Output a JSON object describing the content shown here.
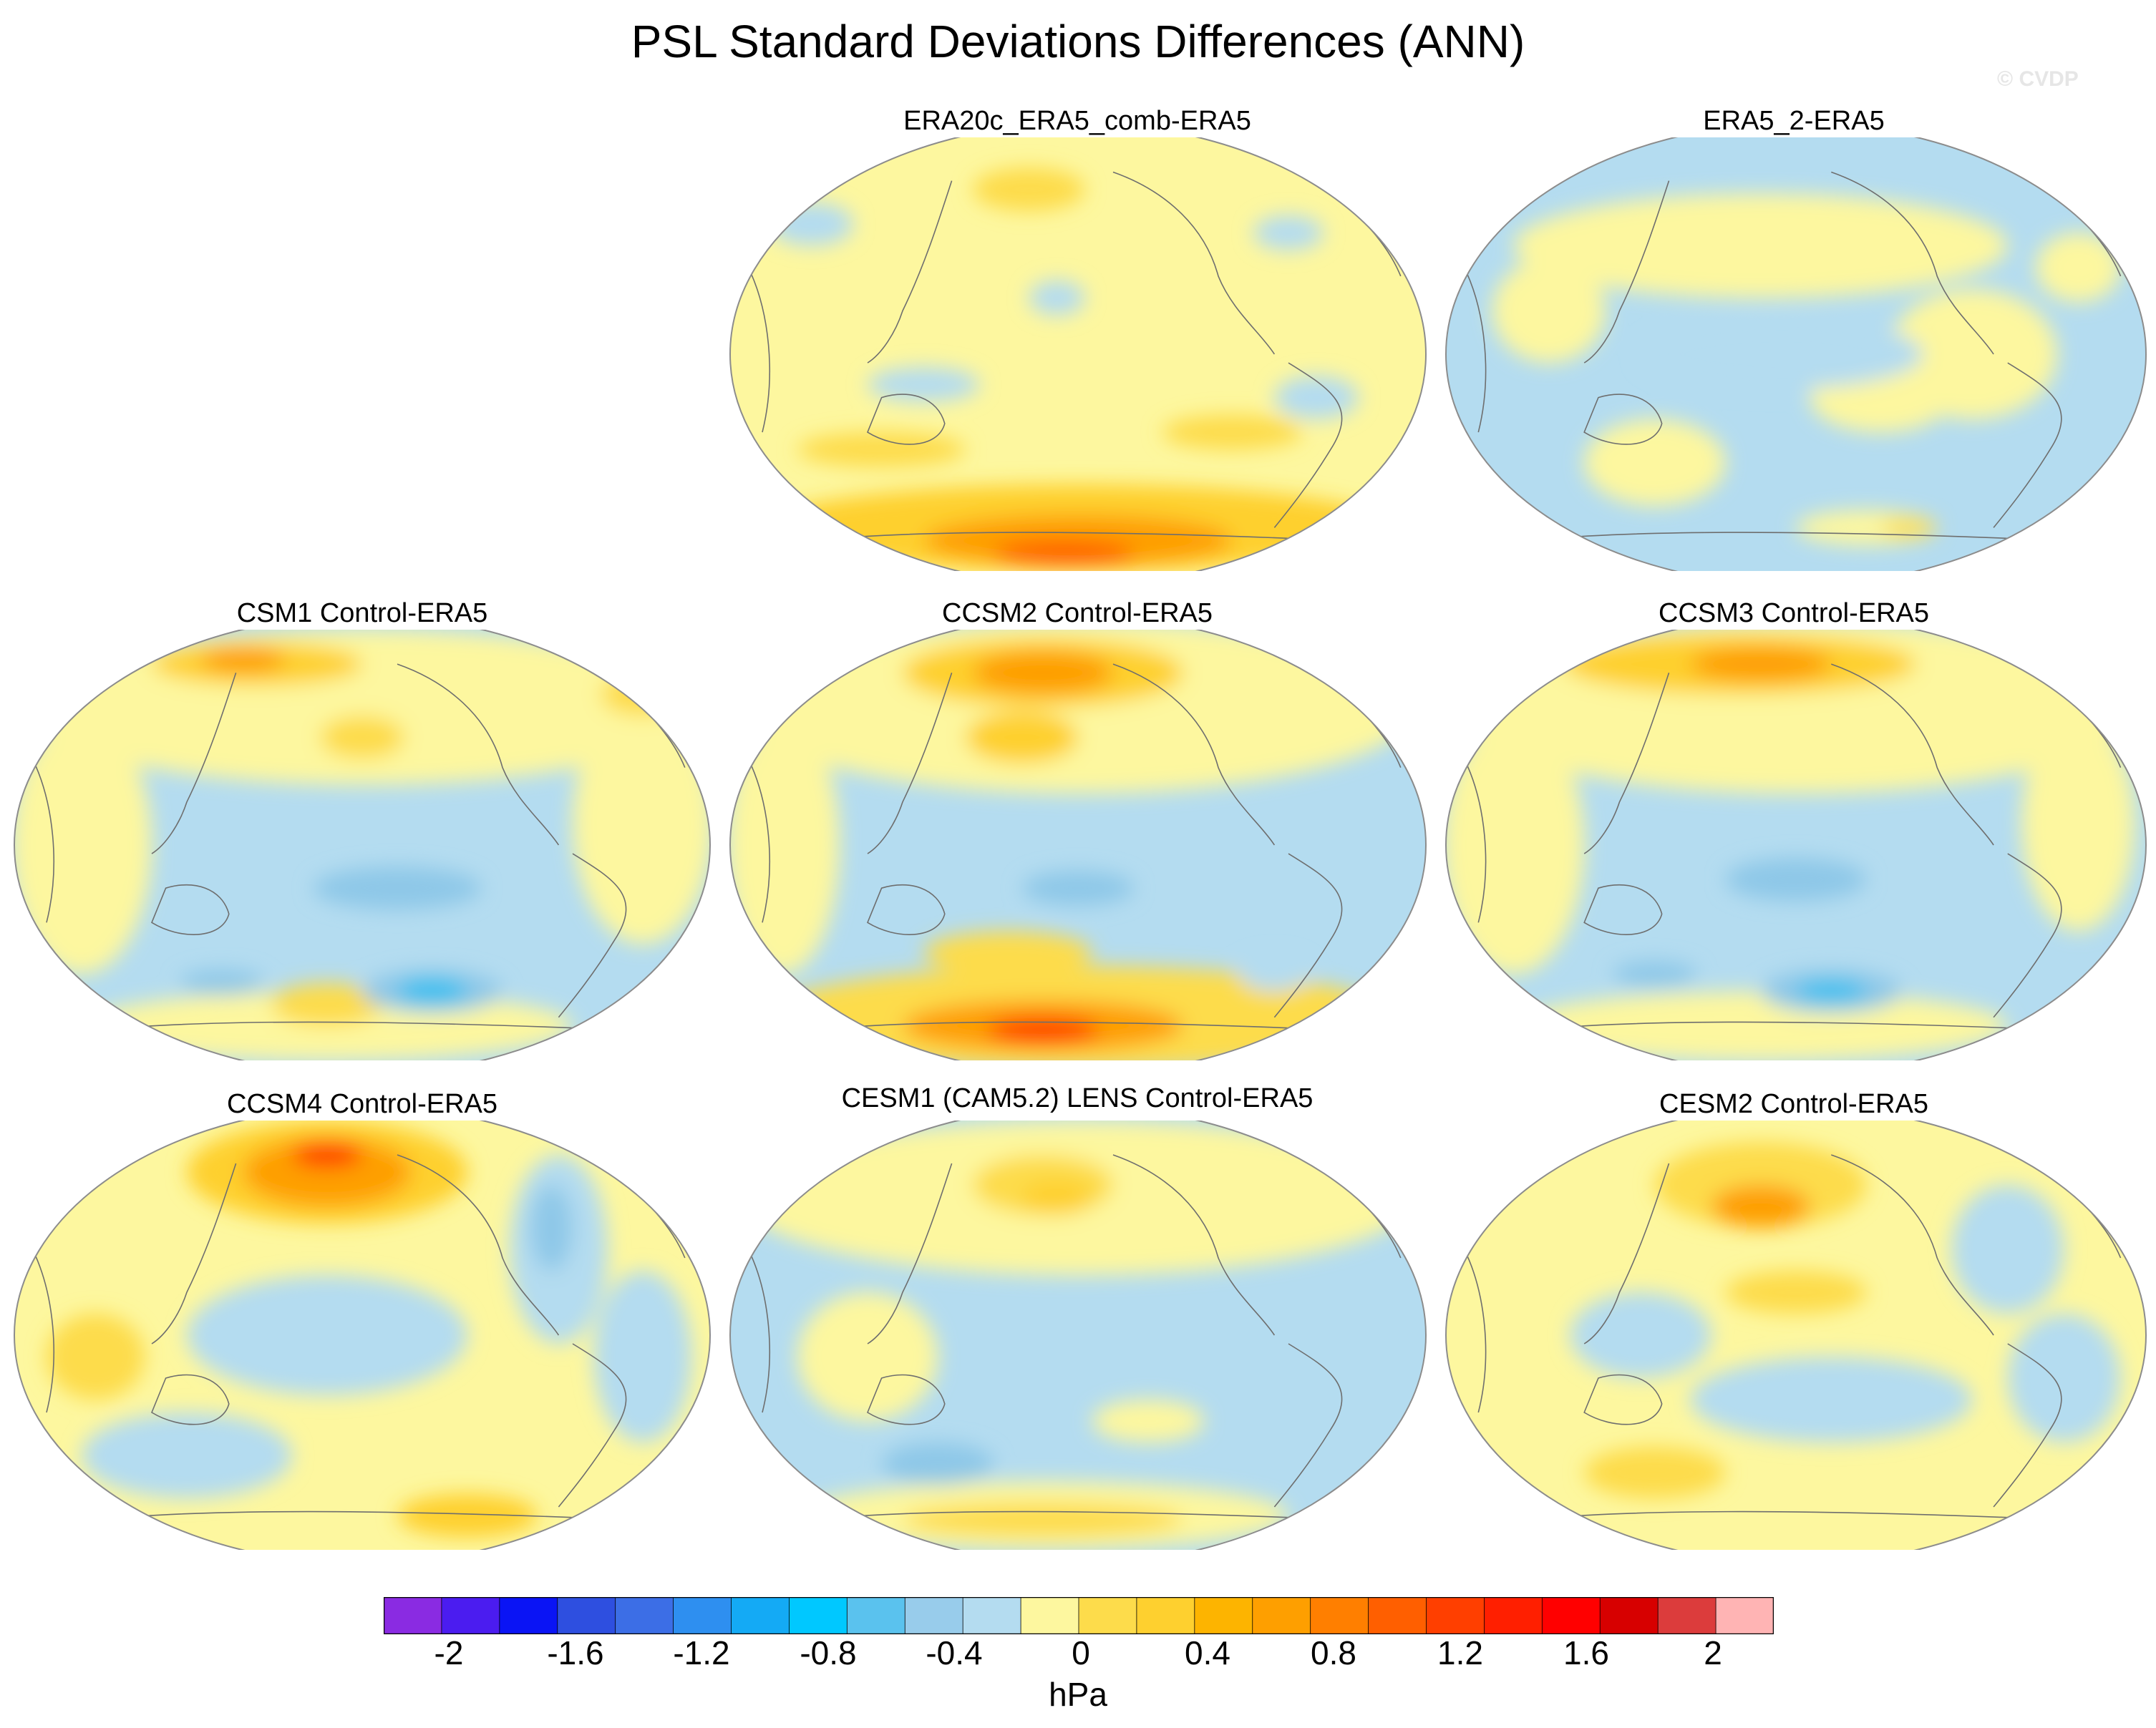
{
  "title": "PSL Standard Deviations Differences (ANN)",
  "watermark": "© CVDP",
  "panels": [
    {
      "title": "ERA20c_ERA5_comb-ERA5",
      "base": "#fdf79f",
      "blobs": [
        {
          "u": 0.5,
          "v": 0.9,
          "rx": 0.45,
          "ry": 0.1,
          "c": "#fed02f"
        },
        {
          "u": 0.5,
          "v": 0.93,
          "rx": 0.22,
          "ry": 0.06,
          "c": "#fe9f00"
        },
        {
          "u": 0.48,
          "v": 0.96,
          "rx": 0.1,
          "ry": 0.03,
          "c": "#ff5f00"
        },
        {
          "u": 0.22,
          "v": 0.72,
          "rx": 0.12,
          "ry": 0.04,
          "c": "#fddc4b"
        },
        {
          "u": 0.72,
          "v": 0.68,
          "rx": 0.1,
          "ry": 0.04,
          "c": "#fddc4b"
        },
        {
          "u": 0.43,
          "v": 0.12,
          "rx": 0.08,
          "ry": 0.05,
          "c": "#fddc4b"
        },
        {
          "u": 0.12,
          "v": 0.2,
          "rx": 0.06,
          "ry": 0.05,
          "c": "#b4dcf0"
        },
        {
          "u": 0.47,
          "v": 0.37,
          "rx": 0.04,
          "ry": 0.04,
          "c": "#b4dcf0"
        },
        {
          "u": 0.28,
          "v": 0.57,
          "rx": 0.08,
          "ry": 0.04,
          "c": "#b4dcf0"
        },
        {
          "u": 0.8,
          "v": 0.22,
          "rx": 0.05,
          "ry": 0.04,
          "c": "#b4dcf0"
        },
        {
          "u": 0.84,
          "v": 0.6,
          "rx": 0.06,
          "ry": 0.05,
          "c": "#b4dcf0"
        }
      ]
    },
    {
      "title": "ERA5_2-ERA5",
      "base": "#b4dcf0",
      "blobs": [
        {
          "u": 0.45,
          "v": 0.25,
          "rx": 0.35,
          "ry": 0.12,
          "c": "#fdf79f"
        },
        {
          "u": 0.75,
          "v": 0.5,
          "rx": 0.12,
          "ry": 0.15,
          "c": "#fdf79f"
        },
        {
          "u": 0.3,
          "v": 0.75,
          "rx": 0.1,
          "ry": 0.1,
          "c": "#fdf79f"
        },
        {
          "u": 0.62,
          "v": 0.6,
          "rx": 0.1,
          "ry": 0.08,
          "c": "#fdf79f"
        },
        {
          "u": 0.15,
          "v": 0.4,
          "rx": 0.08,
          "ry": 0.12,
          "c": "#fdf79f"
        },
        {
          "u": 0.9,
          "v": 0.3,
          "rx": 0.06,
          "ry": 0.08,
          "c": "#fdf79f"
        },
        {
          "u": 0.6,
          "v": 0.9,
          "rx": 0.1,
          "ry": 0.04,
          "c": "#fdf79f"
        },
        {
          "u": 0.66,
          "v": 0.9,
          "rx": 0.04,
          "ry": 0.02,
          "c": "#fddc4b"
        },
        {
          "u": 0.48,
          "v": 0.5,
          "rx": 0.2,
          "ry": 0.08,
          "c": "#b4dcf0"
        }
      ]
    },
    {
      "title": "CSM1 Control-ERA5",
      "base": "#b4dcf0",
      "blobs": [
        {
          "u": 0.5,
          "v": 0.18,
          "rx": 0.48,
          "ry": 0.18,
          "c": "#fdf79f"
        },
        {
          "u": 0.1,
          "v": 0.5,
          "rx": 0.1,
          "ry": 0.3,
          "c": "#fdf79f"
        },
        {
          "u": 0.9,
          "v": 0.45,
          "rx": 0.1,
          "ry": 0.28,
          "c": "#fdf79f"
        },
        {
          "u": 0.45,
          "v": 0.92,
          "rx": 0.35,
          "ry": 0.08,
          "c": "#fdf79f"
        },
        {
          "u": 0.35,
          "v": 0.08,
          "rx": 0.15,
          "ry": 0.05,
          "c": "#fed02f"
        },
        {
          "u": 0.33,
          "v": 0.07,
          "rx": 0.06,
          "ry": 0.03,
          "c": "#fe9f00"
        },
        {
          "u": 0.5,
          "v": 0.25,
          "rx": 0.06,
          "ry": 0.05,
          "c": "#fddc4b"
        },
        {
          "u": 0.45,
          "v": 0.87,
          "rx": 0.08,
          "ry": 0.05,
          "c": "#fddc4b"
        },
        {
          "u": 0.9,
          "v": 0.15,
          "rx": 0.06,
          "ry": 0.05,
          "c": "#fddc4b"
        },
        {
          "u": 0.6,
          "v": 0.84,
          "rx": 0.1,
          "ry": 0.05,
          "c": "#8ec8e8"
        },
        {
          "u": 0.6,
          "v": 0.84,
          "rx": 0.05,
          "ry": 0.03,
          "c": "#3ec0ef"
        },
        {
          "u": 0.3,
          "v": 0.82,
          "rx": 0.06,
          "ry": 0.03,
          "c": "#8ec8e8"
        },
        {
          "u": 0.55,
          "v": 0.6,
          "rx": 0.12,
          "ry": 0.05,
          "c": "#8ec8e8"
        }
      ]
    },
    {
      "title": "CCSM2 Control-ERA5",
      "base": "#b4dcf0",
      "blobs": [
        {
          "u": 0.5,
          "v": 0.18,
          "rx": 0.48,
          "ry": 0.2,
          "c": "#fdf79f"
        },
        {
          "u": 0.45,
          "v": 0.1,
          "rx": 0.2,
          "ry": 0.08,
          "c": "#fed02f"
        },
        {
          "u": 0.45,
          "v": 0.1,
          "rx": 0.1,
          "ry": 0.05,
          "c": "#fe9f00"
        },
        {
          "u": 0.42,
          "v": 0.25,
          "rx": 0.08,
          "ry": 0.06,
          "c": "#fed02f"
        },
        {
          "u": 0.08,
          "v": 0.5,
          "rx": 0.08,
          "ry": 0.3,
          "c": "#fdf79f"
        },
        {
          "u": 0.5,
          "v": 0.9,
          "rx": 0.45,
          "ry": 0.12,
          "c": "#fddc4b"
        },
        {
          "u": 0.45,
          "v": 0.92,
          "rx": 0.2,
          "ry": 0.06,
          "c": "#fe9f00"
        },
        {
          "u": 0.45,
          "v": 0.93,
          "rx": 0.08,
          "ry": 0.03,
          "c": "#ff3f00"
        },
        {
          "u": 0.4,
          "v": 0.75,
          "rx": 0.12,
          "ry": 0.05,
          "c": "#fddc4b"
        },
        {
          "u": 0.5,
          "v": 0.6,
          "rx": 0.08,
          "ry": 0.04,
          "c": "#8ec8e8"
        },
        {
          "u": 0.78,
          "v": 0.8,
          "rx": 0.05,
          "ry": 0.04,
          "c": "#b4dcf0"
        }
      ]
    },
    {
      "title": "CCSM3 Control-ERA5",
      "base": "#b4dcf0",
      "blobs": [
        {
          "u": 0.5,
          "v": 0.18,
          "rx": 0.48,
          "ry": 0.2,
          "c": "#fdf79f"
        },
        {
          "u": 0.42,
          "v": 0.08,
          "rx": 0.25,
          "ry": 0.07,
          "c": "#fed02f"
        },
        {
          "u": 0.45,
          "v": 0.08,
          "rx": 0.1,
          "ry": 0.04,
          "c": "#fe9f00"
        },
        {
          "u": 0.1,
          "v": 0.5,
          "rx": 0.1,
          "ry": 0.3,
          "c": "#fdf79f"
        },
        {
          "u": 0.9,
          "v": 0.45,
          "rx": 0.08,
          "ry": 0.25,
          "c": "#fdf79f"
        },
        {
          "u": 0.45,
          "v": 0.92,
          "rx": 0.35,
          "ry": 0.08,
          "c": "#fdf79f"
        },
        {
          "u": 0.55,
          "v": 0.84,
          "rx": 0.1,
          "ry": 0.05,
          "c": "#8ec8e8"
        },
        {
          "u": 0.55,
          "v": 0.84,
          "rx": 0.05,
          "ry": 0.025,
          "c": "#3ec0ef"
        },
        {
          "u": 0.3,
          "v": 0.8,
          "rx": 0.06,
          "ry": 0.03,
          "c": "#8ec8e8"
        },
        {
          "u": 0.5,
          "v": 0.58,
          "rx": 0.1,
          "ry": 0.05,
          "c": "#8ec8e8"
        }
      ]
    },
    {
      "title": "CCSM4 Control-ERA5",
      "base": "#fdf79f",
      "blobs": [
        {
          "u": 0.45,
          "v": 0.5,
          "rx": 0.2,
          "ry": 0.14,
          "c": "#b4dcf0"
        },
        {
          "u": 0.25,
          "v": 0.78,
          "rx": 0.15,
          "ry": 0.1,
          "c": "#b4dcf0"
        },
        {
          "u": 0.78,
          "v": 0.3,
          "rx": 0.07,
          "ry": 0.22,
          "c": "#b4dcf0"
        },
        {
          "u": 0.77,
          "v": 0.25,
          "rx": 0.03,
          "ry": 0.1,
          "c": "#8ec8e8"
        },
        {
          "u": 0.9,
          "v": 0.55,
          "rx": 0.07,
          "ry": 0.2,
          "c": "#b4dcf0"
        },
        {
          "u": 0.45,
          "v": 0.12,
          "rx": 0.2,
          "ry": 0.12,
          "c": "#fed02f"
        },
        {
          "u": 0.45,
          "v": 0.12,
          "rx": 0.12,
          "ry": 0.08,
          "c": "#fe9f00"
        },
        {
          "u": 0.45,
          "v": 0.08,
          "rx": 0.05,
          "ry": 0.03,
          "c": "#ff3f00"
        },
        {
          "u": 0.12,
          "v": 0.55,
          "rx": 0.07,
          "ry": 0.1,
          "c": "#fddc4b"
        },
        {
          "u": 0.65,
          "v": 0.92,
          "rx": 0.1,
          "ry": 0.05,
          "c": "#fed02f"
        }
      ]
    },
    {
      "title": "CESM1 (CAM5.2) LENS Control-ERA5",
      "base": "#b4dcf0",
      "blobs": [
        {
          "u": 0.5,
          "v": 0.18,
          "rx": 0.48,
          "ry": 0.18,
          "c": "#fdf79f"
        },
        {
          "u": 0.45,
          "v": 0.15,
          "rx": 0.1,
          "ry": 0.07,
          "c": "#fddc4b"
        },
        {
          "u": 0.47,
          "v": 0.18,
          "rx": 0.05,
          "ry": 0.04,
          "c": "#fed02f"
        },
        {
          "u": 0.2,
          "v": 0.55,
          "rx": 0.1,
          "ry": 0.15,
          "c": "#fdf79f"
        },
        {
          "u": 0.45,
          "v": 0.92,
          "rx": 0.35,
          "ry": 0.08,
          "c": "#fdf79f"
        },
        {
          "u": 0.45,
          "v": 0.93,
          "rx": 0.2,
          "ry": 0.04,
          "c": "#fddc4b"
        },
        {
          "u": 0.3,
          "v": 0.8,
          "rx": 0.08,
          "ry": 0.05,
          "c": "#8ec8e8"
        },
        {
          "u": 0.6,
          "v": 0.7,
          "rx": 0.08,
          "ry": 0.05,
          "c": "#fdf79f"
        }
      ]
    },
    {
      "title": "CESM2 Control-ERA5",
      "base": "#fdf79f",
      "blobs": [
        {
          "u": 0.55,
          "v": 0.65,
          "rx": 0.2,
          "ry": 0.1,
          "c": "#b4dcf0"
        },
        {
          "u": 0.28,
          "v": 0.5,
          "rx": 0.1,
          "ry": 0.1,
          "c": "#b4dcf0"
        },
        {
          "u": 0.8,
          "v": 0.3,
          "rx": 0.08,
          "ry": 0.15,
          "c": "#b4dcf0"
        },
        {
          "u": 0.88,
          "v": 0.6,
          "rx": 0.08,
          "ry": 0.15,
          "c": "#b4dcf0"
        },
        {
          "u": 0.45,
          "v": 0.15,
          "rx": 0.15,
          "ry": 0.1,
          "c": "#fddc4b"
        },
        {
          "u": 0.45,
          "v": 0.2,
          "rx": 0.07,
          "ry": 0.05,
          "c": "#fe9f00"
        },
        {
          "u": 0.3,
          "v": 0.82,
          "rx": 0.1,
          "ry": 0.06,
          "c": "#fddc4b"
        },
        {
          "u": 0.5,
          "v": 0.4,
          "rx": 0.1,
          "ry": 0.05,
          "c": "#fddc4b"
        }
      ]
    }
  ],
  "colorbar": {
    "colors": [
      "#8a2be2",
      "#4b1cf0",
      "#0a14f5",
      "#2e4fe0",
      "#3c6ee6",
      "#2e8ff0",
      "#14aaf5",
      "#00c8ff",
      "#5ac2ee",
      "#98cceb",
      "#b4dcf0",
      "#fdf79f",
      "#fddc4b",
      "#fed02f",
      "#fdb400",
      "#fe9f00",
      "#ff7f00",
      "#ff5f00",
      "#ff3f00",
      "#ff1f00",
      "#ff0000",
      "#d70000",
      "#dc3c3c",
      "#ffb4b4"
    ],
    "labels": [
      "-2",
      "-1.6",
      "-1.2",
      "-0.8",
      "-0.4",
      "0",
      "0.4",
      "0.8",
      "1.2",
      "1.6",
      "2"
    ],
    "units": "hPa"
  }
}
